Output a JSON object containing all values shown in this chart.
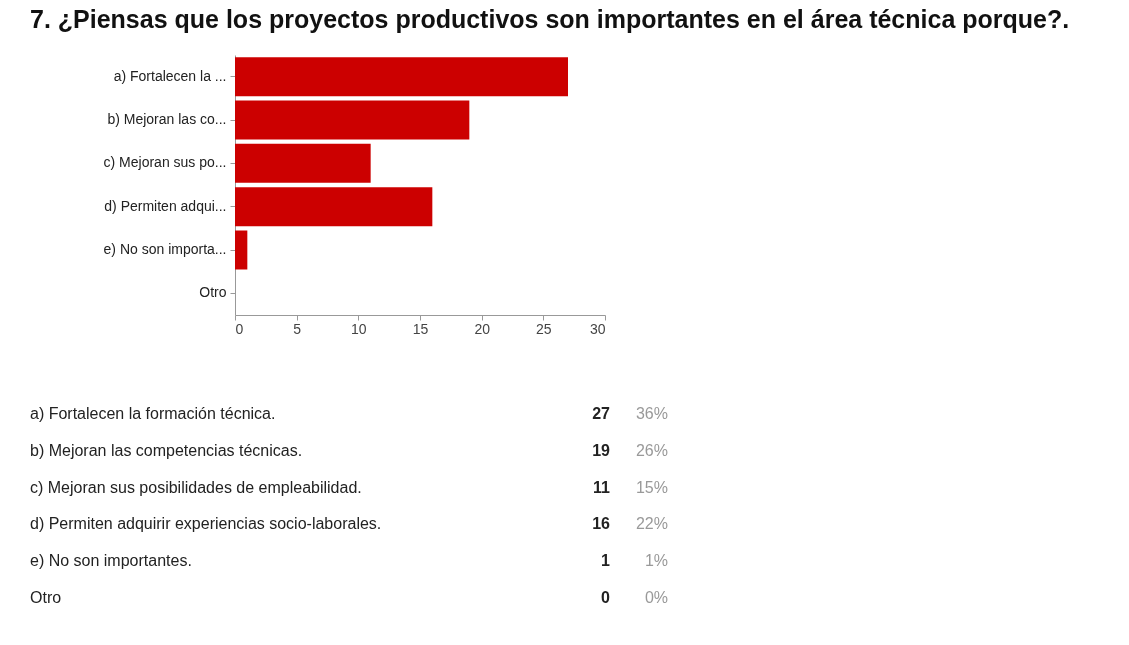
{
  "chart_data": {
    "type": "bar",
    "orientation": "horizontal",
    "title": "7. ¿Piensas que los proyectos productivos son importantes en el área técnica porque?.",
    "categories": [
      "a) Fortalecen la ...",
      "b) Mejoran las co...",
      "c) Mejoran sus po...",
      "d) Permiten adqui...",
      "e) No son importa...",
      "Otro"
    ],
    "values": [
      27,
      19,
      11,
      16,
      1,
      0
    ],
    "color": "#cc0000",
    "xlim": [
      0,
      30
    ],
    "xticks": [
      0,
      5,
      10,
      15,
      20,
      25,
      30
    ],
    "grid": false,
    "annotations": [
      "a) Fortalecen la formación técnica.",
      "27",
      "36%",
      "b) Mejoran las competencias técnicas.",
      "19",
      "26%",
      "c) Mejoran sus posibilidades de empleabilidad.",
      "11",
      "15%",
      "d) Permiten adquirir experiencias socio-laborales.",
      "16",
      "22%",
      "e) No son importantes.",
      "1",
      "1%",
      "Otro",
      "0",
      "0%"
    ]
  }
}
